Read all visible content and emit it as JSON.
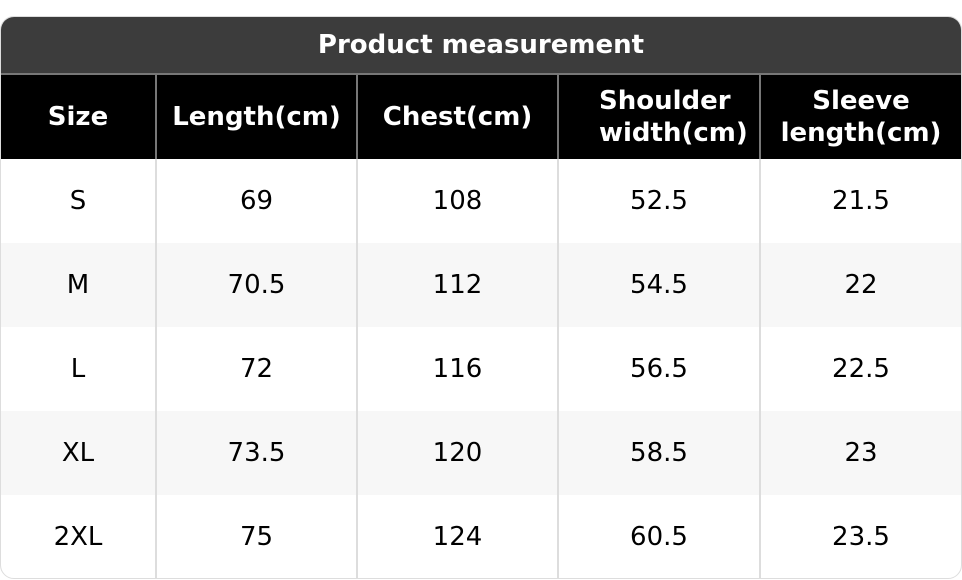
{
  "title": "Product measurement",
  "headers": [
    "Size",
    "Length(cm)",
    "Chest(cm)",
    "Shoulder width(cm)",
    "Sleeve length(cm)"
  ],
  "rows": [
    [
      "S",
      "69",
      "108",
      "52.5",
      "21.5"
    ],
    [
      "M",
      "70.5",
      "112",
      "54.5",
      "22"
    ],
    [
      "L",
      "72",
      "116",
      "56.5",
      "22.5"
    ],
    [
      "XL",
      "73.5",
      "120",
      "58.5",
      "23"
    ],
    [
      "2XL",
      "75",
      "124",
      "60.5",
      "23.5"
    ]
  ]
}
